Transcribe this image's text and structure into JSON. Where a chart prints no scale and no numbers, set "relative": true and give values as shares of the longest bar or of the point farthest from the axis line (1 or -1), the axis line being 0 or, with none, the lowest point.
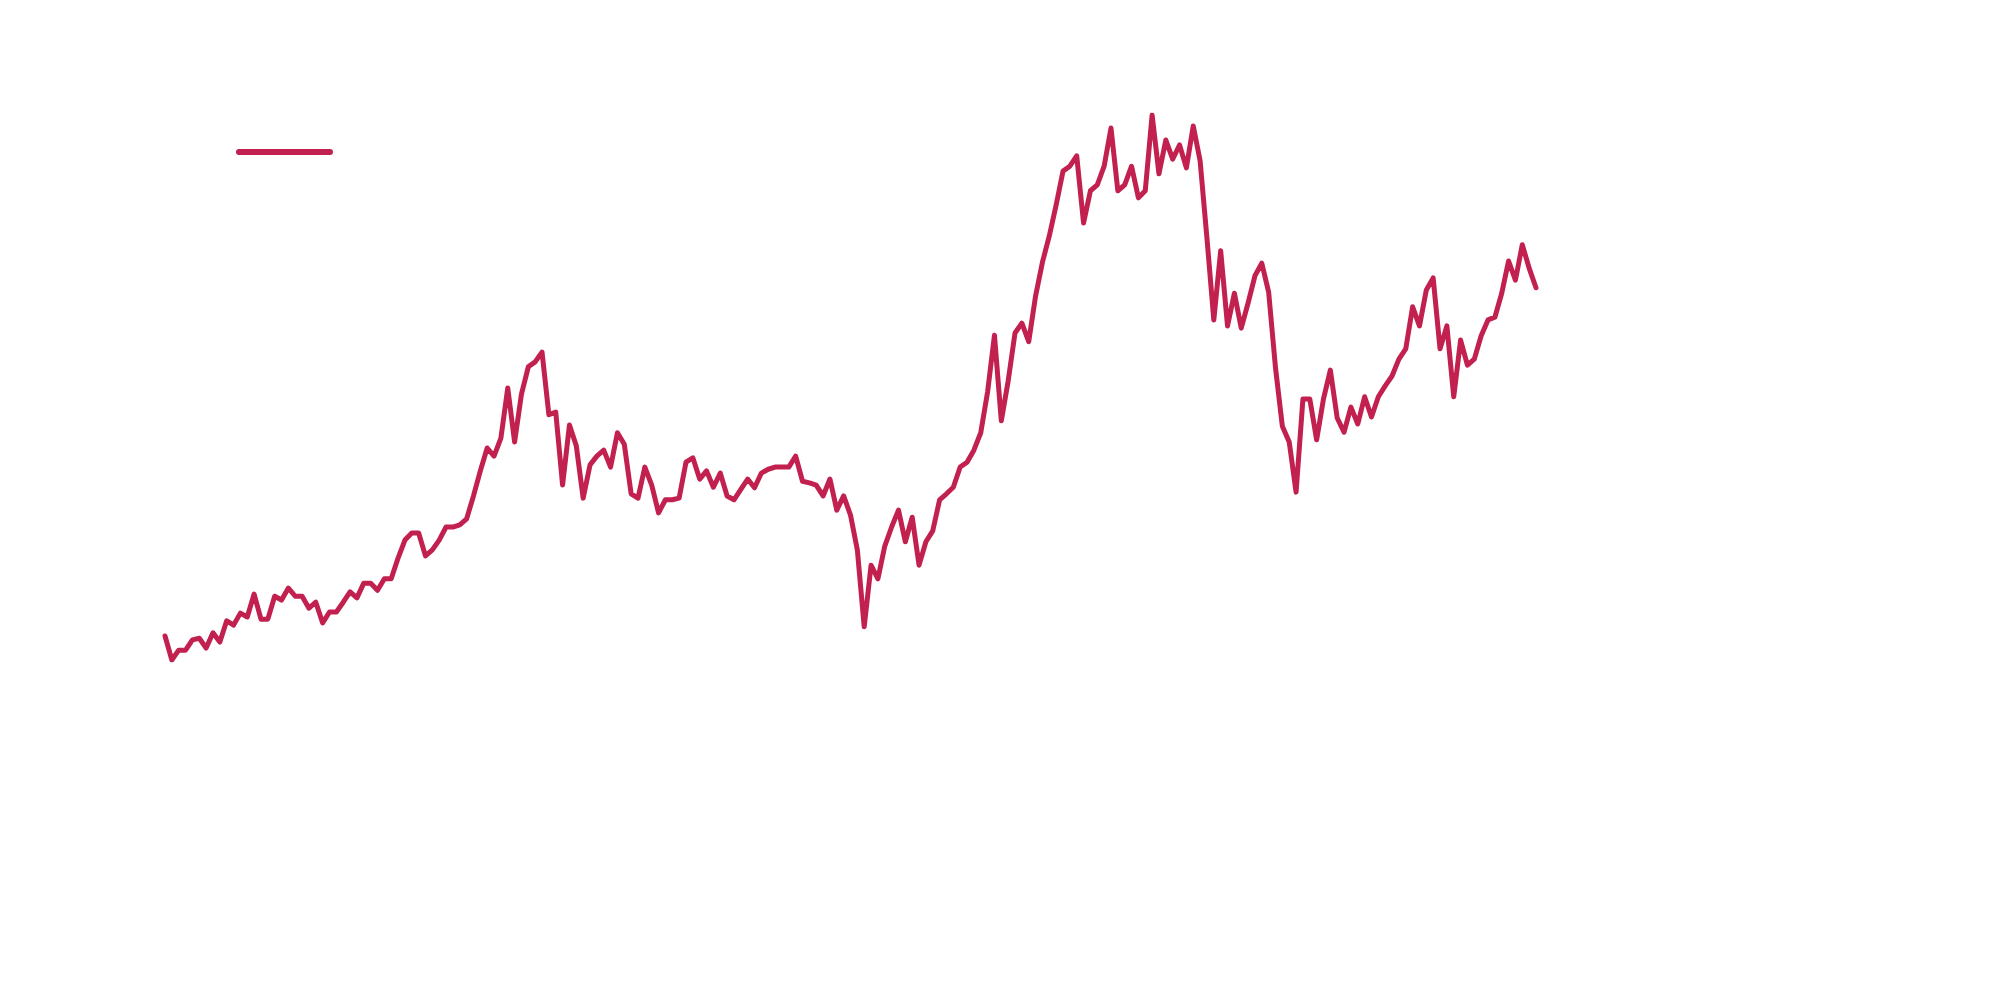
{
  "chart_data": {
    "type": "line",
    "relative": true,
    "color": "#c2214f",
    "marker": "none",
    "line_style": "solid",
    "categories": [
      null,
      null,
      null,
      null,
      null,
      null,
      null,
      null,
      null,
      null,
      null,
      null,
      null,
      null,
      null,
      null,
      null,
      null,
      null,
      null,
      null,
      null,
      null,
      null,
      null,
      null,
      null,
      null,
      null,
      null,
      null,
      null,
      null,
      null,
      null,
      null,
      null,
      null,
      null,
      null,
      null,
      null,
      null,
      null,
      null,
      null,
      null,
      null,
      null,
      null,
      null,
      null,
      null,
      null,
      null,
      null,
      null,
      null,
      null,
      null,
      null,
      null,
      null,
      null,
      null,
      null,
      null,
      null,
      null,
      null,
      null,
      null,
      null,
      null,
      null,
      null,
      null,
      null,
      null,
      null,
      null,
      null,
      null,
      null,
      null,
      null,
      null,
      null,
      null,
      null,
      null,
      null,
      null,
      null,
      null,
      null,
      null,
      null,
      null,
      null,
      null,
      null,
      null,
      null,
      null,
      null,
      null,
      null,
      null,
      null,
      null,
      null,
      null,
      null,
      null,
      null,
      null,
      null,
      null,
      null,
      null,
      null,
      null,
      null,
      null,
      null,
      null,
      null,
      null,
      null,
      null,
      null,
      null,
      null,
      null,
      null,
      null,
      null,
      null,
      null,
      null,
      null,
      null,
      null,
      null,
      null,
      null,
      null,
      null,
      null,
      null,
      null,
      null,
      null,
      null,
      null,
      null,
      null,
      null,
      null,
      null,
      null,
      null,
      null,
      null,
      null,
      null,
      null,
      null,
      null,
      null,
      null,
      null,
      null,
      null,
      null,
      null,
      null,
      null,
      null,
      null,
      null,
      null,
      null,
      null,
      null,
      null,
      null,
      null,
      null,
      null,
      null,
      null,
      null,
      null,
      null,
      null,
      null,
      null,
      null,
      null
    ],
    "values": [
      0.044,
      0,
      0.018,
      0.018,
      0.037,
      0.04,
      0.022,
      0.05,
      0.033,
      0.072,
      0.064,
      0.086,
      0.079,
      0.121,
      0.075,
      0.075,
      0.117,
      0.11,
      0.132,
      0.117,
      0.117,
      0.095,
      0.106,
      0.068,
      0.088,
      0.088,
      0.106,
      0.125,
      0.114,
      0.141,
      0.141,
      0.128,
      0.149,
      0.149,
      0.187,
      0.22,
      0.233,
      0.233,
      0.191,
      0.202,
      0.22,
      0.244,
      0.244,
      0.248,
      0.259,
      0.301,
      0.347,
      0.389,
      0.374,
      0.407,
      0.499,
      0.4,
      0.488,
      0.538,
      0.547,
      0.565,
      0.45,
      0.455,
      0.321,
      0.431,
      0.393,
      0.297,
      0.358,
      0.374,
      0.385,
      0.354,
      0.417,
      0.396,
      0.305,
      0.297,
      0.354,
      0.321,
      0.27,
      0.294,
      0.294,
      0.297,
      0.363,
      0.371,
      0.332,
      0.347,
      0.317,
      0.343,
      0.301,
      0.294,
      0.313,
      0.332,
      0.316,
      0.343,
      0.35,
      0.354,
      0.354,
      0.354,
      0.374,
      0.328,
      0.325,
      0.321,
      0.301,
      0.332,
      0.275,
      0.301,
      0.266,
      0.202,
      0.061,
      0.174,
      0.149,
      0.209,
      0.244,
      0.275,
      0.217,
      0.262,
      0.174,
      0.217,
      0.237,
      0.294,
      0.305,
      0.317,
      0.354,
      0.363,
      0.385,
      0.417,
      0.492,
      0.596,
      0.439,
      0.512,
      0.6,
      0.618,
      0.584,
      0.668,
      0.73,
      0.778,
      0.835,
      0.897,
      0.906,
      0.925,
      0.802,
      0.861,
      0.872,
      0.906,
      0.976,
      0.861,
      0.872,
      0.906,
      0.848,
      0.861,
      1,
      0.892,
      0.954,
      0.919,
      0.945,
      0.903,
      0.98,
      0.916,
      0.774,
      0.624,
      0.751,
      0.613,
      0.673,
      0.609,
      0.655,
      0.705,
      0.728,
      0.675,
      0.536,
      0.429,
      0.4,
      0.308,
      0.479,
      0.479,
      0.404,
      0.479,
      0.532,
      0.444,
      0.418,
      0.464,
      0.433,
      0.483,
      0.446,
      0.483,
      0.503,
      0.521,
      0.552,
      0.571,
      0.648,
      0.613,
      0.679,
      0.701,
      0.571,
      0.613,
      0.483,
      0.587,
      0.541,
      0.552,
      0.595,
      0.624,
      0.629,
      0.673,
      0.732,
      0.697,
      0.762,
      0.719,
      0.683
    ]
  }
}
